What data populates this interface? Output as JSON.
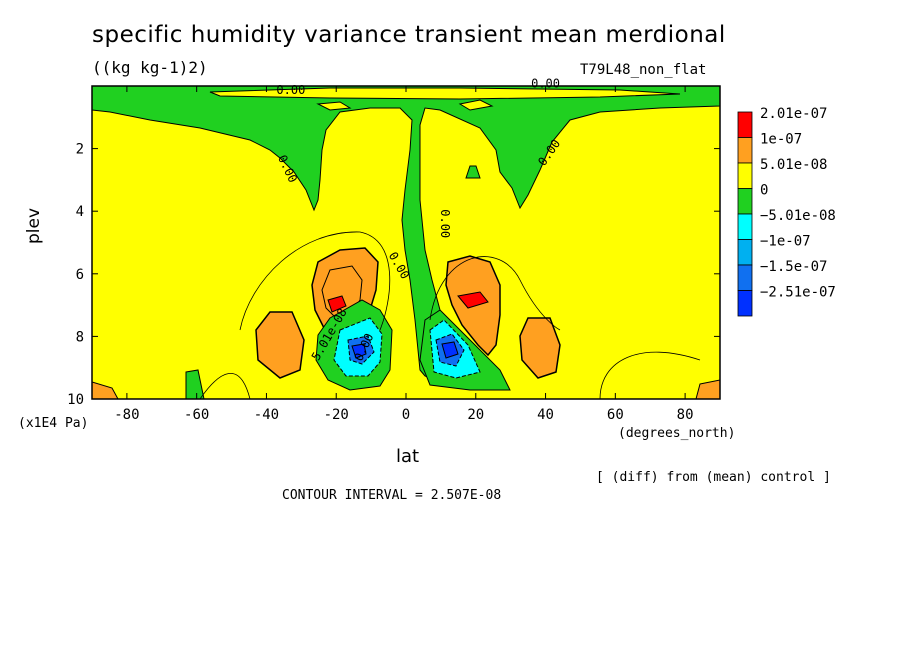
{
  "title": "specific humidity variance transient mean merdional",
  "units": "((kg kg-1)2)",
  "experiment": "T79L48_non_flat",
  "diff_note": "[ (diff) from (mean) control ]",
  "contour_interval": "CONTOUR INTERVAL = 2.507E-08",
  "chart_data": {
    "type": "heatmap",
    "xlabel": "lat",
    "x_units": "(degrees_north)",
    "ylabel": "plev",
    "y_units": "(x1E4 Pa)",
    "xlim": [
      -90,
      90
    ],
    "ylim": [
      0,
      10
    ],
    "y_inverted": true,
    "x_ticks": [
      "-80",
      "-60",
      "-40",
      "-20",
      "0",
      "20",
      "40",
      "60",
      "80"
    ],
    "x_tick_values": [
      -80,
      -60,
      -40,
      -20,
      0,
      20,
      40,
      60,
      80
    ],
    "y_ticks": [
      "2",
      "4",
      "6",
      "8",
      "10"
    ],
    "y_tick_values": [
      2,
      4,
      6,
      8,
      10
    ],
    "contour_labels": [
      "0.00",
      "0.00",
      "0.00",
      "0.00",
      "0.00",
      "0.00",
      "0.00",
      "5.01e-08"
    ],
    "legend": {
      "placement": "right",
      "levels": [
        {
          "label": "2.01e-07",
          "color": "#ff0000"
        },
        {
          "label": "1e-07",
          "color": "#ffa020"
        },
        {
          "label": "5.01e-08",
          "color": "#ffff00"
        },
        {
          "label": "0",
          "color": "#20d020"
        },
        {
          "label": "−5.01e-08",
          "color": "#00ffff"
        },
        {
          "label": "−1e-07",
          "color": "#00b0f0"
        },
        {
          "label": "−1.5e-07",
          "color": "#1070f0"
        },
        {
          "label": "−2.51e-07",
          "color": "#0030ff"
        }
      ]
    },
    "features": [
      {
        "region": "background",
        "level": "0 to 5.01e-08",
        "color": "#ffff00"
      },
      {
        "region": "upper layer 0-1.5",
        "color": "#20d020"
      },
      {
        "region": "equatorial column",
        "color": "#20d020"
      },
      {
        "region": "max near (-15,7)",
        "color": "#ff0000"
      },
      {
        "region": "max near (18,7)",
        "color": "#ff0000"
      },
      {
        "region": "min near (-15,8.4)",
        "color": "#0030ff"
      },
      {
        "region": "min near (12,8.4)",
        "color": "#0030ff"
      }
    ]
  }
}
